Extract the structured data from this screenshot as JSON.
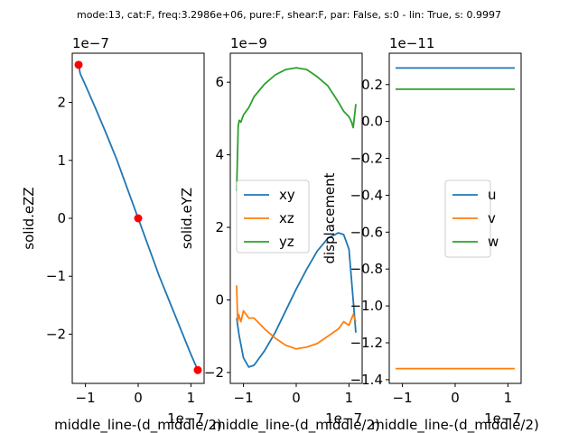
{
  "figure_title": "mode:13, cat:F, freq:3.2986e+06, pure:F, shear:F, par: False, s:0 - lin: True, s: 0.9997",
  "chart_data": [
    {
      "type": "line",
      "xlabel": "middle_line-(d_middle/2)",
      "ylabel": "solid.eZZ",
      "x_offset_label": "1e−7",
      "y_offset_label": "1e−7",
      "xlim": [
        -1.25,
        1.25
      ],
      "ylim": [
        -2.85,
        2.85
      ],
      "xticks": [
        -1,
        0,
        1
      ],
      "xtick_labels": [
        "−1",
        "0",
        "1"
      ],
      "yticks": [
        -2,
        -1,
        0,
        1,
        2
      ],
      "ytick_labels": [
        "−2",
        "−1",
        "0",
        "1",
        "2"
      ],
      "series": [
        {
          "color": "#1f77b4",
          "x": [
            -1.13,
            -1.1,
            -1.0,
            -0.8,
            -0.6,
            -0.4,
            -0.2,
            0.0,
            0.2,
            0.4,
            0.6,
            0.8,
            1.0,
            1.13
          ],
          "y": [
            2.65,
            2.5,
            2.3,
            1.88,
            1.45,
            1.0,
            0.5,
            0.0,
            -0.5,
            -1.0,
            -1.45,
            -1.9,
            -2.35,
            -2.62
          ]
        }
      ],
      "markers": {
        "color": "#ff0000",
        "x": [
          -1.13,
          0.0,
          1.13
        ],
        "y": [
          2.65,
          0.0,
          -2.62
        ]
      }
    },
    {
      "type": "line",
      "xlabel": "middle_line-(d_middle/2)",
      "ylabel": "solid.eYZ",
      "x_offset_label": "1e−7",
      "y_offset_label": "1e−9",
      "xlim": [
        -1.25,
        1.25
      ],
      "ylim": [
        -2.3,
        6.8
      ],
      "xticks": [
        -1,
        0,
        1
      ],
      "xtick_labels": [
        "−1",
        "0",
        "1"
      ],
      "yticks": [
        -2,
        0,
        2,
        4,
        6
      ],
      "ytick_labels": [
        "−2",
        "0",
        "2",
        "4",
        "6"
      ],
      "legend_position": "center-left",
      "series": [
        {
          "name": "xy",
          "color": "#1f77b4",
          "x": [
            -1.13,
            -1.08,
            -1.0,
            -0.9,
            -0.8,
            -0.6,
            -0.4,
            -0.2,
            0.0,
            0.2,
            0.4,
            0.6,
            0.8,
            0.9,
            1.0,
            1.08,
            1.13
          ],
          "y": [
            -0.5,
            -1.0,
            -1.6,
            -1.85,
            -1.8,
            -1.4,
            -0.9,
            -0.3,
            0.3,
            0.85,
            1.35,
            1.7,
            1.85,
            1.8,
            1.4,
            0.0,
            -0.9
          ]
        },
        {
          "name": "xz",
          "color": "#ff7f0e",
          "x": [
            -1.13,
            -1.11,
            -1.09,
            -1.05,
            -1.0,
            -0.9,
            -0.8,
            -0.6,
            -0.4,
            -0.2,
            0.0,
            0.2,
            0.4,
            0.6,
            0.8,
            0.9,
            1.0,
            1.08,
            1.13
          ],
          "y": [
            0.4,
            -0.6,
            -0.4,
            -0.6,
            -0.3,
            -0.5,
            -0.5,
            -0.8,
            -1.05,
            -1.25,
            -1.35,
            -1.3,
            -1.2,
            -1.0,
            -0.8,
            -0.6,
            -0.7,
            -0.4,
            -0.6
          ]
        },
        {
          "name": "yz",
          "color": "#2ca02c",
          "x": [
            -1.13,
            -1.1,
            -1.08,
            -1.05,
            -1.0,
            -0.9,
            -0.8,
            -0.6,
            -0.4,
            -0.2,
            0.0,
            0.2,
            0.4,
            0.6,
            0.8,
            0.9,
            1.0,
            1.05,
            1.08,
            1.1,
            1.13
          ],
          "y": [
            3.0,
            4.8,
            4.95,
            4.9,
            5.1,
            5.3,
            5.6,
            5.95,
            6.2,
            6.35,
            6.4,
            6.35,
            6.15,
            5.9,
            5.45,
            5.2,
            5.05,
            4.9,
            4.75,
            5.0,
            5.4
          ]
        }
      ]
    },
    {
      "type": "line",
      "xlabel": "middle_line-(d_middle/2)",
      "ylabel": "displacement",
      "x_offset_label": "1e−7",
      "y_offset_label": "1e−11",
      "xlim": [
        -1.25,
        1.25
      ],
      "ylim": [
        -1.42,
        0.37
      ],
      "xticks": [
        -1,
        0,
        1
      ],
      "xtick_labels": [
        "−1",
        "0",
        "1"
      ],
      "yticks": [
        0.2,
        0.0,
        -0.2,
        -0.4,
        -0.6,
        -0.8,
        -1.0,
        -1.2,
        -1.4
      ],
      "ytick_labels": [
        "0.2",
        "0.0",
        "−0.2",
        "−0.4",
        "−0.6",
        "−0.8",
        "−1.0",
        "−1.2",
        "−1.4"
      ],
      "legend_position": "center-right",
      "series": [
        {
          "name": "u",
          "color": "#1f77b4",
          "x": [
            -1.13,
            1.13
          ],
          "y": [
            0.29,
            0.29
          ]
        },
        {
          "name": "v",
          "color": "#ff7f0e",
          "x": [
            -1.13,
            1.13
          ],
          "y": [
            -1.34,
            -1.34
          ]
        },
        {
          "name": "w",
          "color": "#2ca02c",
          "x": [
            -1.13,
            1.13
          ],
          "y": [
            0.175,
            0.175
          ]
        }
      ]
    }
  ]
}
